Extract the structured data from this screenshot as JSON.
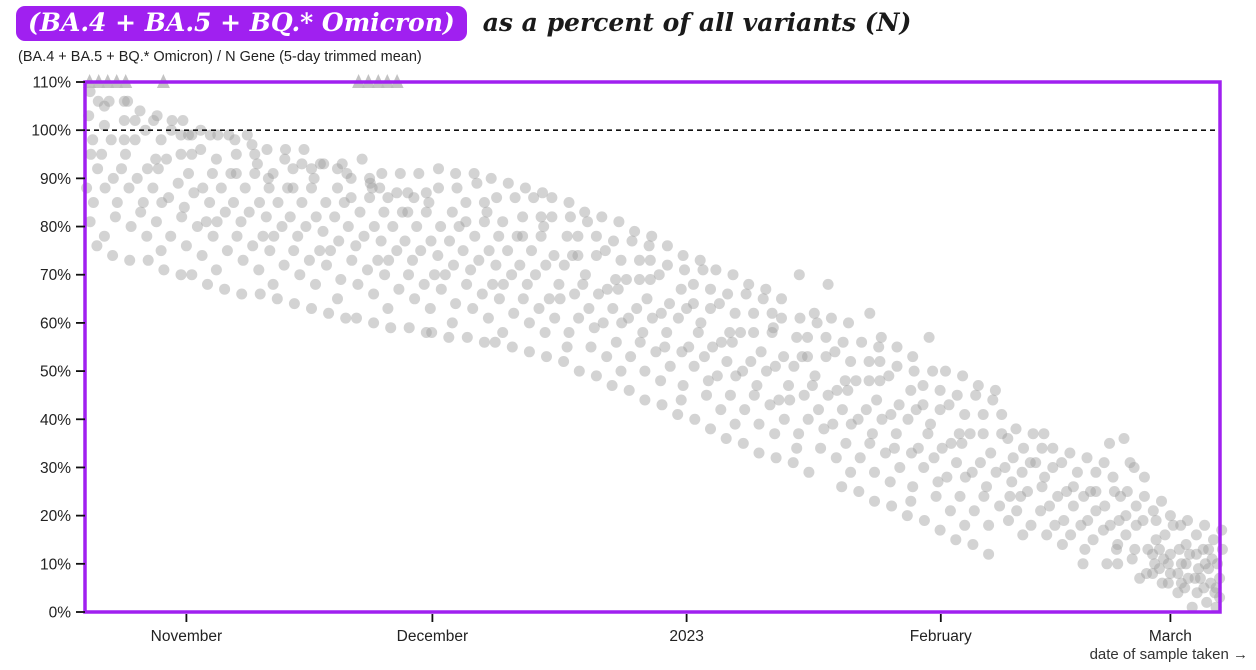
{
  "title": {
    "highlight": "(BA.4 + BA.5 + BQ.* Omicron)",
    "rest": "as a percent of all variants (N)"
  },
  "subtitle": "(BA.4 + BA.5 + BQ.* Omicron) / N Gene (5-day trimmed mean)",
  "colors": {
    "accent": "#A020F0",
    "point": "#9E9E9E",
    "triangle": "#B9B9B9",
    "reference_line": "#111111",
    "axis_text": "#222222",
    "caption_text": "#333333"
  },
  "chart_data": {
    "type": "scatter",
    "title": "(BA.4 + BA.5 + BQ.* Omicron) as a percent of all variants (N)",
    "subtitle": "(BA.4 + BA.5 + BQ.* Omicron) / N Gene (5-day trimmed mean)",
    "x_axis": {
      "label": "date of sample taken →",
      "start_date": "2022-10-20",
      "end_date": "2023-03-07",
      "ticks": [
        {
          "day": 12,
          "label": "November"
        },
        {
          "day": 42,
          "label": "December"
        },
        {
          "day": 73,
          "label": "2023"
        },
        {
          "day": 104,
          "label": "February"
        },
        {
          "day": 132,
          "label": "March"
        }
      ]
    },
    "y_axis": {
      "min": 0,
      "max": 110,
      "tick_step": 10,
      "unit": "%",
      "tick_labels": [
        "110%",
        "100%",
        "90%",
        "80%",
        "70%",
        "60%",
        "50%",
        "40%",
        "30%",
        "20%",
        "10%",
        "0%"
      ]
    },
    "reference_line_pct": 100,
    "clipped_above_max_days": [
      0.2,
      1.3,
      2.4,
      3.5,
      4.6,
      9.2,
      33,
      34.2,
      35.4,
      36.5,
      37.7
    ],
    "daily_points": [
      [
        0,
        [
          81,
          88,
          95,
          103,
          108
        ]
      ],
      [
        1,
        [
          85,
          92,
          98,
          106,
          76
        ]
      ],
      [
        2,
        [
          78,
          88,
          95,
          101,
          105
        ]
      ],
      [
        3,
        [
          82,
          90,
          98,
          106,
          74
        ]
      ],
      [
        4,
        [
          85,
          92,
          98,
          102,
          106
        ]
      ],
      [
        5,
        [
          80,
          88,
          95,
          106,
          73
        ]
      ],
      [
        6,
        [
          83,
          90,
          98,
          102,
          104
        ]
      ],
      [
        7,
        [
          78,
          85,
          92,
          100,
          73
        ]
      ],
      [
        8,
        [
          81,
          88,
          94,
          102,
          103
        ]
      ],
      [
        9,
        [
          75,
          85,
          92,
          98,
          71
        ]
      ],
      [
        10,
        [
          78,
          86,
          94,
          102,
          100
        ]
      ],
      [
        11,
        [
          82,
          89,
          95,
          99,
          70
        ]
      ],
      [
        12,
        [
          76,
          84,
          91,
          102,
          99
        ]
      ],
      [
        13,
        [
          80,
          87,
          95,
          99,
          70
        ]
      ],
      [
        14,
        [
          74,
          81,
          88,
          96,
          100
        ]
      ],
      [
        15,
        [
          78,
          85,
          91,
          99,
          68
        ]
      ],
      [
        16,
        [
          71,
          81,
          88,
          94,
          99
        ]
      ],
      [
        17,
        [
          75,
          83,
          91,
          99,
          67
        ]
      ],
      [
        18,
        [
          78,
          85,
          91,
          95,
          98
        ]
      ],
      [
        19,
        [
          73,
          81,
          88,
          99,
          66
        ]
      ],
      [
        20,
        [
          76,
          83,
          91,
          95,
          97
        ]
      ],
      [
        21,
        [
          71,
          78,
          85,
          93,
          66
        ]
      ],
      [
        22,
        [
          75,
          82,
          88,
          96,
          90
        ]
      ],
      [
        23,
        [
          68,
          78,
          85,
          91,
          65
        ]
      ],
      [
        24,
        [
          72,
          80,
          88,
          96,
          94
        ]
      ],
      [
        25,
        [
          75,
          82,
          88,
          92,
          64
        ]
      ],
      [
        26,
        [
          70,
          78,
          85,
          96,
          93
        ]
      ],
      [
        27,
        [
          73,
          80,
          88,
          92,
          63
        ]
      ],
      [
        28,
        [
          68,
          75,
          82,
          90,
          93
        ]
      ],
      [
        29,
        [
          72,
          79,
          85,
          93,
          62
        ]
      ],
      [
        30,
        [
          65,
          75,
          82,
          88,
          92
        ]
      ],
      [
        31,
        [
          69,
          77,
          85,
          93,
          61
        ]
      ],
      [
        32,
        [
          73,
          80,
          86,
          90,
          91
        ]
      ],
      [
        33,
        [
          68,
          76,
          83,
          94,
          61
        ]
      ],
      [
        34,
        [
          71,
          78,
          86,
          90,
          89
        ]
      ],
      [
        35,
        [
          66,
          73,
          80,
          88,
          60
        ]
      ],
      [
        36,
        [
          70,
          77,
          83,
          91,
          88
        ]
      ],
      [
        37,
        [
          63,
          73,
          80,
          86,
          59
        ]
      ],
      [
        38,
        [
          67,
          75,
          83,
          91,
          87
        ]
      ],
      [
        39,
        [
          70,
          77,
          83,
          87,
          59
        ]
      ],
      [
        40,
        [
          65,
          73,
          80,
          91,
          86
        ]
      ],
      [
        41,
        [
          68,
          75,
          83,
          87,
          58
        ]
      ],
      [
        42,
        [
          63,
          70,
          77,
          85,
          58
        ]
      ],
      [
        43,
        [
          67,
          74,
          80,
          88,
          92
        ]
      ],
      [
        44,
        [
          60,
          70,
          77,
          83,
          57
        ]
      ],
      [
        45,
        [
          64,
          72,
          80,
          88,
          91
        ]
      ],
      [
        46,
        [
          68,
          75,
          81,
          85,
          57
        ]
      ],
      [
        47,
        [
          63,
          71,
          78,
          89,
          91
        ]
      ],
      [
        48,
        [
          66,
          73,
          81,
          85,
          56
        ]
      ],
      [
        49,
        [
          61,
          68,
          75,
          83,
          90
        ]
      ],
      [
        50,
        [
          65,
          72,
          78,
          86,
          56
        ]
      ],
      [
        51,
        [
          58,
          68,
          75,
          81,
          89
        ]
      ],
      [
        52,
        [
          62,
          70,
          78,
          86,
          55
        ]
      ],
      [
        53,
        [
          65,
          72,
          78,
          82,
          88
        ]
      ],
      [
        54,
        [
          60,
          68,
          75,
          86,
          54
        ]
      ],
      [
        55,
        [
          63,
          70,
          78,
          82,
          87
        ]
      ],
      [
        56,
        [
          58,
          65,
          72,
          80,
          53
        ]
      ],
      [
        57,
        [
          61,
          68,
          74,
          82,
          86
        ]
      ],
      [
        58,
        [
          55,
          65,
          72,
          78,
          52
        ]
      ],
      [
        59,
        [
          58,
          66,
          74,
          82,
          85
        ]
      ],
      [
        60,
        [
          61,
          68,
          74,
          78,
          50
        ]
      ],
      [
        61,
        [
          55,
          63,
          70,
          81,
          83
        ]
      ],
      [
        62,
        [
          59,
          66,
          74,
          78,
          49
        ]
      ],
      [
        63,
        [
          53,
          60,
          67,
          75,
          82
        ]
      ],
      [
        64,
        [
          56,
          63,
          69,
          77,
          47
        ]
      ],
      [
        65,
        [
          50,
          60,
          67,
          73,
          81
        ]
      ],
      [
        66,
        [
          53,
          61,
          69,
          77,
          46
        ]
      ],
      [
        67,
        [
          56,
          63,
          69,
          73,
          79
        ]
      ],
      [
        68,
        [
          50,
          58,
          65,
          76,
          44
        ]
      ],
      [
        69,
        [
          54,
          61,
          69,
          73,
          78
        ]
      ],
      [
        70,
        [
          48,
          55,
          62,
          70,
          43
        ]
      ],
      [
        71,
        [
          51,
          58,
          64,
          72,
          76
        ]
      ],
      [
        72,
        [
          44,
          54,
          61,
          67,
          41
        ]
      ],
      [
        73,
        [
          47,
          55,
          63,
          71,
          74
        ]
      ],
      [
        74,
        [
          51,
          58,
          64,
          68,
          40
        ]
      ],
      [
        75,
        [
          45,
          53,
          60,
          71,
          73
        ]
      ],
      [
        76,
        [
          48,
          55,
          63,
          67,
          38
        ]
      ],
      [
        77,
        [
          42,
          49,
          56,
          64,
          71
        ]
      ],
      [
        78,
        [
          45,
          52,
          58,
          66,
          36
        ]
      ],
      [
        79,
        [
          39,
          49,
          56,
          62,
          70
        ]
      ],
      [
        80,
        [
          42,
          50,
          58,
          66,
          35
        ]
      ],
      [
        81,
        [
          45,
          52,
          58,
          62,
          68
        ]
      ],
      [
        82,
        [
          39,
          47,
          54,
          65,
          33
        ]
      ],
      [
        83,
        [
          43,
          50,
          58,
          62,
          67
        ]
      ],
      [
        84,
        [
          37,
          44,
          51,
          59,
          32
        ]
      ],
      [
        85,
        [
          40,
          47,
          53,
          61,
          65
        ]
      ],
      [
        86,
        [
          34,
          44,
          51,
          57,
          31
        ]
      ],
      [
        87,
        [
          37,
          45,
          53,
          61,
          70
        ]
      ],
      [
        88,
        [
          40,
          47,
          53,
          57,
          29
        ]
      ],
      [
        89,
        [
          34,
          42,
          49,
          60,
          62
        ]
      ],
      [
        90,
        [
          38,
          45,
          53,
          57,
          68
        ]
      ],
      [
        91,
        [
          32,
          39,
          46,
          54,
          61
        ]
      ],
      [
        92,
        [
          35,
          42,
          48,
          56,
          26
        ]
      ],
      [
        93,
        [
          29,
          39,
          46,
          52,
          60
        ]
      ],
      [
        94,
        [
          32,
          40,
          48,
          56,
          25
        ]
      ],
      [
        95,
        [
          35,
          42,
          48,
          52,
          62
        ]
      ],
      [
        96,
        [
          29,
          37,
          44,
          55,
          23
        ]
      ],
      [
        97,
        [
          33,
          40,
          48,
          52,
          57
        ]
      ],
      [
        98,
        [
          27,
          34,
          41,
          49,
          22
        ]
      ],
      [
        99,
        [
          30,
          37,
          43,
          51,
          55
        ]
      ],
      [
        100,
        [
          23,
          33,
          40,
          46,
          20
        ]
      ],
      [
        101,
        [
          26,
          34,
          42,
          50,
          53
        ]
      ],
      [
        102,
        [
          30,
          37,
          43,
          47,
          19
        ]
      ],
      [
        103,
        [
          24,
          32,
          39,
          50,
          57
        ]
      ],
      [
        104,
        [
          27,
          34,
          42,
          46,
          17
        ]
      ],
      [
        105,
        [
          21,
          28,
          35,
          43,
          50
        ]
      ],
      [
        106,
        [
          24,
          31,
          37,
          45,
          15
        ]
      ],
      [
        107,
        [
          18,
          28,
          35,
          41,
          49
        ]
      ],
      [
        108,
        [
          21,
          29,
          37,
          45,
          14
        ]
      ],
      [
        109,
        [
          24,
          31,
          37,
          41,
          47
        ]
      ],
      [
        110,
        [
          18,
          26,
          33,
          44,
          12
        ]
      ],
      [
        111,
        [
          22,
          29,
          37,
          41,
          46
        ]
      ],
      [
        112,
        [
          19,
          24,
          30,
          36
        ]
      ],
      [
        113,
        [
          21,
          27,
          32,
          38
        ]
      ],
      [
        114,
        [
          16,
          24,
          29,
          34
        ]
      ],
      [
        115,
        [
          18,
          25,
          31,
          37
        ]
      ],
      [
        116,
        [
          21,
          26,
          31,
          34
        ]
      ],
      [
        117,
        [
          16,
          22,
          28,
          37
        ]
      ],
      [
        118,
        [
          18,
          24,
          30,
          34
        ]
      ],
      [
        119,
        [
          14,
          19,
          25,
          31
        ]
      ],
      [
        120,
        [
          16,
          22,
          26,
          33
        ]
      ],
      [
        121,
        [
          10,
          18,
          24,
          29
        ]
      ],
      [
        122,
        [
          13,
          19,
          25,
          32
        ]
      ],
      [
        123,
        [
          15,
          21,
          25,
          29
        ]
      ],
      [
        124,
        [
          10,
          17,
          22,
          31
        ]
      ],
      [
        125,
        [
          13,
          18,
          25,
          28,
          35
        ]
      ],
      [
        126,
        [
          10,
          14,
          19,
          24,
          36
        ]
      ],
      [
        127,
        [
          11,
          16,
          20,
          25,
          31
        ]
      ],
      [
        128,
        [
          7,
          13,
          18,
          22,
          30
        ]
      ],
      [
        129,
        [
          8,
          13,
          19,
          24,
          28
        ]
      ],
      [
        130,
        [
          10,
          15,
          19,
          21,
          8,
          12
        ]
      ],
      [
        131,
        [
          6,
          11,
          16,
          23,
          9,
          13
        ]
      ],
      [
        132,
        [
          8,
          12,
          18,
          20,
          6,
          10
        ]
      ],
      [
        133,
        [
          4,
          8,
          13,
          18,
          6,
          10
        ]
      ],
      [
        134,
        [
          5,
          10,
          14,
          19,
          7,
          12
        ]
      ],
      [
        135,
        [
          1,
          7,
          12,
          16,
          4,
          9
        ]
      ],
      [
        136,
        [
          2,
          7,
          13,
          18,
          5,
          10
        ]
      ],
      [
        137,
        [
          4,
          9,
          13,
          15,
          6,
          11
        ]
      ],
      [
        138,
        [
          1,
          5,
          10,
          17,
          3,
          7,
          13
        ]
      ]
    ]
  }
}
